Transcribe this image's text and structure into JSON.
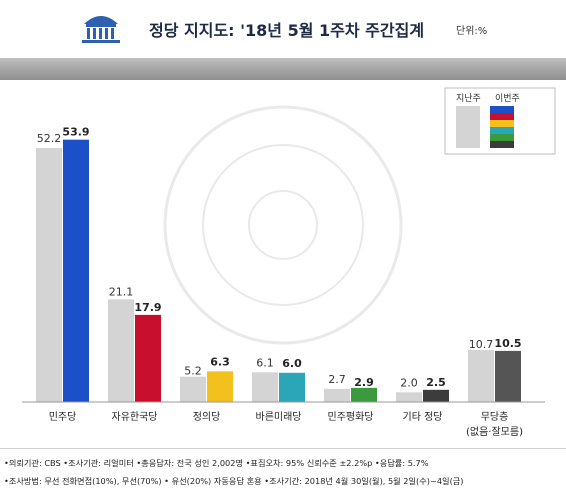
{
  "header": {
    "title": "정당 지지도: '18년 5월 1주차 주간집계",
    "unit": "단위:%"
  },
  "legend": {
    "prev_label": "지난주",
    "curr_label": "이번주",
    "prev_color": "#d4d4d4",
    "curr_stripe_colors": [
      "#1c50c8",
      "#c8102e",
      "#f2c11e",
      "#2aa6b8",
      "#3a9a3c",
      "#3c3c3c"
    ]
  },
  "chart_data": {
    "type": "bar",
    "categories": [
      "민주당",
      "자유한국당",
      "정의당",
      "바른미래당",
      "민주평화당",
      "기타 정당",
      "무당층"
    ],
    "category_sublabels": [
      "",
      "",
      "",
      "",
      "",
      "",
      "(없음·잘모름)"
    ],
    "series": [
      {
        "name": "지난주",
        "values": [
          52.2,
          21.1,
          5.2,
          6.1,
          2.7,
          2.0,
          10.7
        ]
      },
      {
        "name": "이번주",
        "values": [
          53.9,
          17.9,
          6.3,
          6.0,
          2.9,
          2.5,
          10.5
        ]
      }
    ],
    "value_labels": [
      [
        "52.2",
        "53.9"
      ],
      [
        "21.1",
        "17.9"
      ],
      [
        "5.2",
        "6.3"
      ],
      [
        "6.1",
        "6.0"
      ],
      [
        "2.7",
        "2.9"
      ],
      [
        "2.0",
        "2.5"
      ],
      [
        "10.7",
        "10.5"
      ]
    ],
    "ylim": [
      0,
      60
    ],
    "title": "",
    "xlabel": "",
    "ylabel": "",
    "grid": false,
    "legend_position": "top-right",
    "prev_color": "#d4d4d4",
    "curr_colors": [
      "#1c50c8",
      "#c8102e",
      "#f2c11e",
      "#2aa6b8",
      "#3a9a3c",
      "#3c3c3c",
      "#555555"
    ]
  },
  "footer": {
    "line1": "•의뢰기관: CBS •조사기관: 리얼미터 •총응답자: 전국 성인 2,002명 •표집오차: 95% 신뢰수준 ±2.2%p •응답률: 5.7%",
    "line2": "•조사방법: 무선 전화면접(10%), 무선(70%) • 유선(20%) 자동응답 혼용 •조사기간: 2018년 4월 30일(월), 5월 2일(수)~4일(금)"
  }
}
